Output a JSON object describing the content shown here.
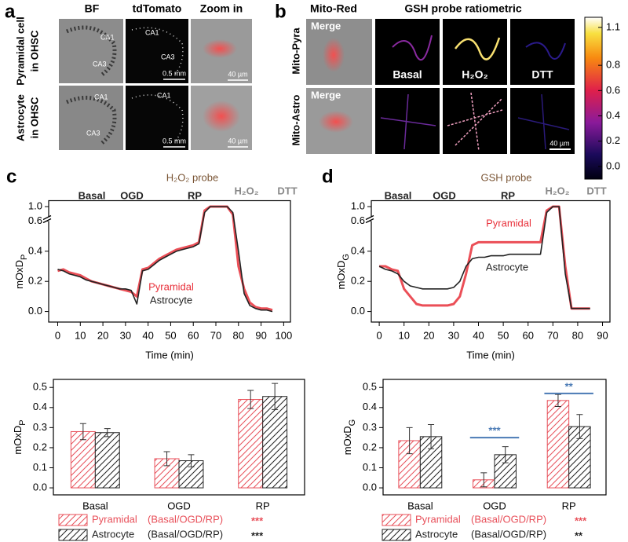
{
  "panel_a": {
    "label": "a",
    "columns": [
      "BF",
      "tdTomato",
      "Zoom in"
    ],
    "rows": [
      [
        "Pyramidal cell",
        "in OHSC"
      ],
      [
        "Astrocyte",
        "in OHSC"
      ]
    ],
    "region_labels": [
      "CA1",
      "CA3"
    ],
    "scale_bars": [
      "0.5 mm",
      "40 µm"
    ]
  },
  "panel_b": {
    "label": "b",
    "columns": [
      "Mito-Red",
      "GSH probe ratiometric"
    ],
    "rows": [
      "Mito-Pyra",
      "Mito-Astro"
    ],
    "merge": "Merge",
    "conditions": [
      "Basal",
      "H₂O₂",
      "DTT"
    ],
    "scale_bar": "40 µm",
    "colorbar": {
      "lim": [
        -0.1,
        1.18
      ],
      "ticks": [
        1.1,
        0.8,
        0.6,
        0.4,
        0.2,
        {
          "value": 0,
          "label": "0.0"
        }
      ]
    }
  },
  "chart_data": [
    {
      "type": "line",
      "panel_label": "c",
      "title": "H₂O₂ probe",
      "xlabel": "Time (min)",
      "ylabel": "mOxD",
      "ylabel_sub": "P",
      "phases": [
        "Basal",
        "OGD",
        "RP",
        "H₂O₂",
        "DTT"
      ],
      "x": [
        0,
        2.5,
        5,
        7.5,
        10,
        12.5,
        15,
        17.5,
        20,
        22.5,
        25,
        27.5,
        30,
        32.5,
        35,
        37.5,
        40,
        42.5,
        45,
        47.5,
        50,
        52.5,
        55,
        57.5,
        60,
        62.5,
        65,
        67.5,
        70,
        72.5,
        75,
        77.5,
        80,
        82.5,
        85,
        87.5,
        90,
        92.5,
        95
      ],
      "series": [
        {
          "name": "Pyramidal",
          "color": "#e8303a",
          "values": [
            0.27,
            0.28,
            0.26,
            0.25,
            0.24,
            0.22,
            0.2,
            0.19,
            0.18,
            0.17,
            0.16,
            0.15,
            0.14,
            0.13,
            0.1,
            0.28,
            0.29,
            0.32,
            0.35,
            0.37,
            0.39,
            0.41,
            0.42,
            0.43,
            0.44,
            0.46,
            0.98,
            1.0,
            1.0,
            1.0,
            1.0,
            0.96,
            0.3,
            0.15,
            0.06,
            0.03,
            0.02,
            0.02,
            0.01
          ]
        },
        {
          "name": "Astrocyte",
          "color": "#222222",
          "values": [
            0.28,
            0.27,
            0.25,
            0.24,
            0.23,
            0.21,
            0.2,
            0.19,
            0.18,
            0.17,
            0.16,
            0.15,
            0.15,
            0.14,
            0.05,
            0.27,
            0.28,
            0.31,
            0.34,
            0.36,
            0.38,
            0.4,
            0.41,
            0.42,
            0.43,
            0.45,
            0.97,
            1.0,
            1.0,
            1.0,
            1.0,
            0.97,
            0.4,
            0.12,
            0.04,
            0.02,
            0.01,
            0.01,
            0.0
          ]
        }
      ],
      "xlim": [
        -4,
        103
      ],
      "xticks": [
        0,
        10,
        20,
        30,
        40,
        50,
        60,
        70,
        80,
        90,
        100
      ],
      "ylim": [
        -0.07,
        1.03
      ],
      "yticks": [
        {
          "value": 0,
          "label": "0.0"
        },
        0.2,
        0.4,
        0.6,
        {
          "value": 1,
          "label": "1.0"
        }
      ],
      "ybreak": [
        0.6,
        0.95
      ]
    },
    {
      "type": "line",
      "panel_label": "d",
      "title": "GSH probe",
      "xlabel": "Time (min)",
      "ylabel": "mOxD",
      "ylabel_sub": "G",
      "phases": [
        "Basal",
        "OGD",
        "RP",
        "H₂O₂",
        "DTT"
      ],
      "x": [
        0,
        2.5,
        5,
        7.5,
        10,
        12.5,
        15,
        17.5,
        20,
        22.5,
        25,
        27.5,
        30,
        32.5,
        35,
        37.5,
        40,
        42.5,
        45,
        47.5,
        50,
        52.5,
        55,
        57.5,
        60,
        62.5,
        65,
        67.5,
        70,
        72.5,
        75,
        77.5,
        80,
        82.5,
        85
      ],
      "series": [
        {
          "name": "Pyramidal",
          "color": "#e8303a",
          "values": [
            0.3,
            0.3,
            0.28,
            0.27,
            0.15,
            0.1,
            0.05,
            0.04,
            0.04,
            0.04,
            0.04,
            0.04,
            0.05,
            0.1,
            0.25,
            0.44,
            0.46,
            0.46,
            0.46,
            0.46,
            0.46,
            0.46,
            0.46,
            0.46,
            0.46,
            0.46,
            0.46,
            0.98,
            1.0,
            1.0,
            0.3,
            0.02,
            0.02,
            0.02,
            0.02
          ]
        },
        {
          "name": "Astrocyte",
          "color": "#222222",
          "values": [
            0.3,
            0.28,
            0.27,
            0.25,
            0.2,
            0.17,
            0.16,
            0.15,
            0.15,
            0.15,
            0.15,
            0.15,
            0.16,
            0.2,
            0.3,
            0.35,
            0.36,
            0.36,
            0.37,
            0.37,
            0.37,
            0.38,
            0.38,
            0.38,
            0.38,
            0.38,
            0.38,
            0.97,
            1.0,
            1.0,
            0.25,
            0.02,
            0.02,
            0.02,
            0.02
          ]
        }
      ],
      "xlim": [
        -3.2,
        93
      ],
      "xticks": [
        0,
        10,
        20,
        30,
        40,
        50,
        60,
        70,
        80,
        90
      ],
      "ylim": [
        -0.07,
        1.03
      ],
      "yticks": [
        {
          "value": 0,
          "label": "0.0"
        },
        0.2,
        0.4,
        0.6,
        {
          "value": 1,
          "label": "1.0"
        }
      ],
      "ybreak": [
        0.6,
        0.95
      ]
    },
    {
      "type": "bar",
      "ylabel": "mOxD",
      "ylabel_sub": "P",
      "categories": [
        "Basal",
        "OGD",
        "RP"
      ],
      "series": [
        {
          "name": "Pyramidal",
          "color": "#e8505a",
          "note": "(Basal/OGD/RP)",
          "sig": "***",
          "values": [
            0.28,
            0.145,
            0.44
          ],
          "errors": [
            0.04,
            0.035,
            0.045
          ]
        },
        {
          "name": "Astrocyte",
          "color": "#222222",
          "note": "(Basal/OGD/RP)",
          "sig": "***",
          "values": [
            0.275,
            0.135,
            0.455
          ],
          "errors": [
            0.02,
            0.03,
            0.065
          ]
        }
      ],
      "ylim": [
        -0.035,
        0.54
      ],
      "yticks": [
        {
          "value": 0,
          "label": "0.0"
        },
        0.1,
        0.2,
        0.3,
        0.4,
        0.5
      ],
      "significance": []
    },
    {
      "type": "bar",
      "ylabel": "mOxD",
      "ylabel_sub": "G",
      "categories": [
        "Basal",
        "OGD",
        "RP"
      ],
      "series": [
        {
          "name": "Pyramidal",
          "color": "#e8505a",
          "note": "(Basal/OGD/RP)",
          "sig": "***",
          "values": [
            0.235,
            0.04,
            0.435
          ],
          "errors": [
            0.065,
            0.035,
            0.03
          ]
        },
        {
          "name": "Astrocyte",
          "color": "#222222",
          "note": "(Basal/OGD/RP)",
          "sig": "**",
          "values": [
            0.255,
            0.165,
            0.305
          ],
          "errors": [
            0.06,
            0.04,
            0.06
          ]
        }
      ],
      "ylim": [
        -0.035,
        0.54
      ],
      "yticks": [
        {
          "value": 0,
          "label": "0.0"
        },
        0.1,
        0.2,
        0.3,
        0.4,
        0.5
      ],
      "significance": [
        {
          "category": 1,
          "y": 0.25,
          "label": "***",
          "color": "#4a7ab5"
        },
        {
          "category": 2,
          "y": 0.47,
          "label": "**",
          "color": "#4a7ab5"
        }
      ]
    }
  ]
}
